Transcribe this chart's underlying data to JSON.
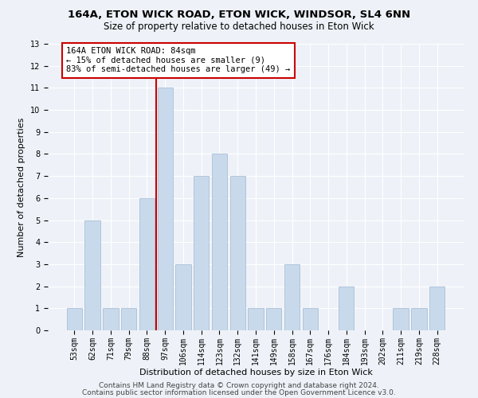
{
  "title1": "164A, ETON WICK ROAD, ETON WICK, WINDSOR, SL4 6NN",
  "title2": "Size of property relative to detached houses in Eton Wick",
  "xlabel": "Distribution of detached houses by size in Eton Wick",
  "ylabel": "Number of detached properties",
  "categories": [
    "53sqm",
    "62sqm",
    "71sqm",
    "79sqm",
    "88sqm",
    "97sqm",
    "106sqm",
    "114sqm",
    "123sqm",
    "132sqm",
    "141sqm",
    "149sqm",
    "158sqm",
    "167sqm",
    "176sqm",
    "184sqm",
    "193sqm",
    "202sqm",
    "211sqm",
    "219sqm",
    "228sqm"
  ],
  "values": [
    1,
    5,
    1,
    1,
    6,
    11,
    3,
    7,
    8,
    7,
    1,
    1,
    3,
    1,
    0,
    2,
    0,
    0,
    1,
    1,
    2
  ],
  "bar_color": "#c8d9eb",
  "bar_edge_color": "#a0b8d0",
  "vline_x": 4.5,
  "vline_color": "#cc0000",
  "annotation_text": "164A ETON WICK ROAD: 84sqm\n← 15% of detached houses are smaller (9)\n83% of semi-detached houses are larger (49) →",
  "annotation_box_color": "#ffffff",
  "annotation_box_edge": "#cc0000",
  "ylim": [
    0,
    13
  ],
  "yticks": [
    0,
    1,
    2,
    3,
    4,
    5,
    6,
    7,
    8,
    9,
    10,
    11,
    12,
    13
  ],
  "footer1": "Contains HM Land Registry data © Crown copyright and database right 2024.",
  "footer2": "Contains public sector information licensed under the Open Government Licence v3.0.",
  "background_color": "#eef2f8",
  "grid_color": "#ffffff",
  "title1_fontsize": 9.5,
  "title2_fontsize": 8.5,
  "xlabel_fontsize": 8,
  "ylabel_fontsize": 8,
  "tick_fontsize": 7,
  "footer_fontsize": 6.5,
  "annotation_fontsize": 7.5
}
